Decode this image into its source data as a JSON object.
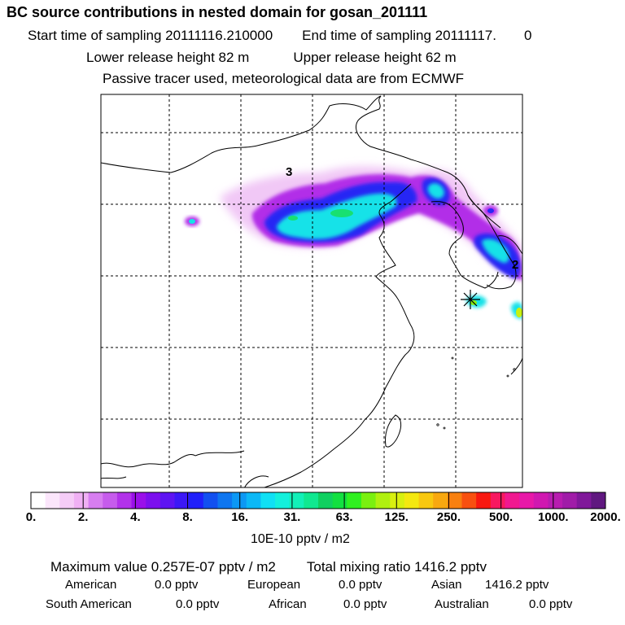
{
  "header": {
    "title": "BC  source contributions in nested domain for gosan_201111",
    "start_label": "Start time of sampling 20111116.210000",
    "end_label": "End time of sampling 20111117.",
    "end_suffix": "0",
    "lower_label": "Lower release height   82 m",
    "upper_label": "Upper release height   62 m",
    "note": "Passive tracer used, meteorological data are from ECMWF"
  },
  "map_labels": {
    "label_3": "3",
    "label_2": "2"
  },
  "chart_data": {
    "type": "heatmap",
    "title": "BC  source contributions in nested domain for gosan_201111",
    "colorbar": {
      "ticks": [
        "0.",
        "2.",
        "4.",
        "8.",
        "16.",
        "31.",
        "63.",
        "125.",
        "250.",
        "500.",
        "1000.",
        "2000."
      ],
      "unit": "10E-10 pptv / m2",
      "colors": [
        "#ffffff",
        "#fbe6fb",
        "#f5ccf7",
        "#f0b0f4",
        "#d77ef0",
        "#c65cec",
        "#b232ea",
        "#9a10ea",
        "#7c10ee",
        "#5e14f2",
        "#3c18f6",
        "#2020fa",
        "#1250f0",
        "#0e76f0",
        "#0c98f4",
        "#0cb8f6",
        "#10e0f4",
        "#14f0dc",
        "#12f0b8",
        "#10e890",
        "#10d060",
        "#12e040",
        "#30f020",
        "#7af010",
        "#b0f010",
        "#d8f010",
        "#f4e810",
        "#f8c810",
        "#f8a810",
        "#f88010",
        "#f85010",
        "#f81810",
        "#f81860",
        "#f01890",
        "#e818a8",
        "#d018b0",
        "#b81cb0",
        "#a01ca8",
        "#80189a",
        "#601880"
      ]
    },
    "maximum_value": "Maximum value  0.257E-07 pptv / m2",
    "total_mixing_ratio": "Total mixing ratio     1416.2 pptv",
    "contributions": [
      {
        "name": "American",
        "value": "0.0 pptv"
      },
      {
        "name": "European",
        "value": "0.0 pptv"
      },
      {
        "name": "Asian",
        "value": "1416.2 pptv"
      },
      {
        "name": "South American",
        "value": "0.0 pptv"
      },
      {
        "name": "African",
        "value": "0.0 pptv"
      },
      {
        "name": "Australian",
        "value": "0.0 pptv"
      }
    ]
  }
}
